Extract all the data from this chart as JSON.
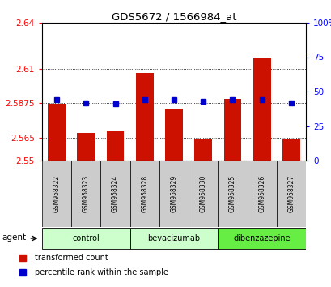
{
  "title": "GDS5672 / 1566984_at",
  "samples": [
    "GSM958322",
    "GSM958323",
    "GSM958324",
    "GSM958328",
    "GSM958329",
    "GSM958330",
    "GSM958325",
    "GSM958326",
    "GSM958327"
  ],
  "red_values": [
    2.587,
    2.568,
    2.569,
    2.607,
    2.584,
    2.564,
    2.59,
    2.617,
    2.564
  ],
  "blue_values": [
    0.44,
    0.42,
    0.41,
    0.44,
    0.44,
    0.43,
    0.44,
    0.44,
    0.42
  ],
  "ylim_left": [
    2.55,
    2.64
  ],
  "ylim_right": [
    0.0,
    1.0
  ],
  "yticks_left": [
    2.55,
    2.565,
    2.5875,
    2.61,
    2.64
  ],
  "yticks_right": [
    0.0,
    0.25,
    0.5,
    0.75,
    1.0
  ],
  "ytick_labels_left": [
    "2.55",
    "2.565",
    "2.5875",
    "2.61",
    "2.64"
  ],
  "ytick_labels_right": [
    "0",
    "25",
    "50",
    "75",
    "100%"
  ],
  "bar_color": "#cc1100",
  "blue_color": "#0000cc",
  "bar_width": 0.6,
  "baseline": 2.55,
  "agent_label": "agent",
  "group_boundaries": [
    {
      "label": "control",
      "start": 0,
      "end": 2,
      "color": "#ccffcc"
    },
    {
      "label": "bevacizumab",
      "start": 3,
      "end": 5,
      "color": "#ccffcc"
    },
    {
      "label": "dibenzazepine",
      "start": 6,
      "end": 8,
      "color": "#66ee44"
    }
  ],
  "legend_items": [
    {
      "color": "#cc1100",
      "label": "transformed count"
    },
    {
      "color": "#0000cc",
      "label": "percentile rank within the sample"
    }
  ],
  "bg_color": "#ffffff",
  "grid_color": "black",
  "sample_box_color": "#cccccc"
}
